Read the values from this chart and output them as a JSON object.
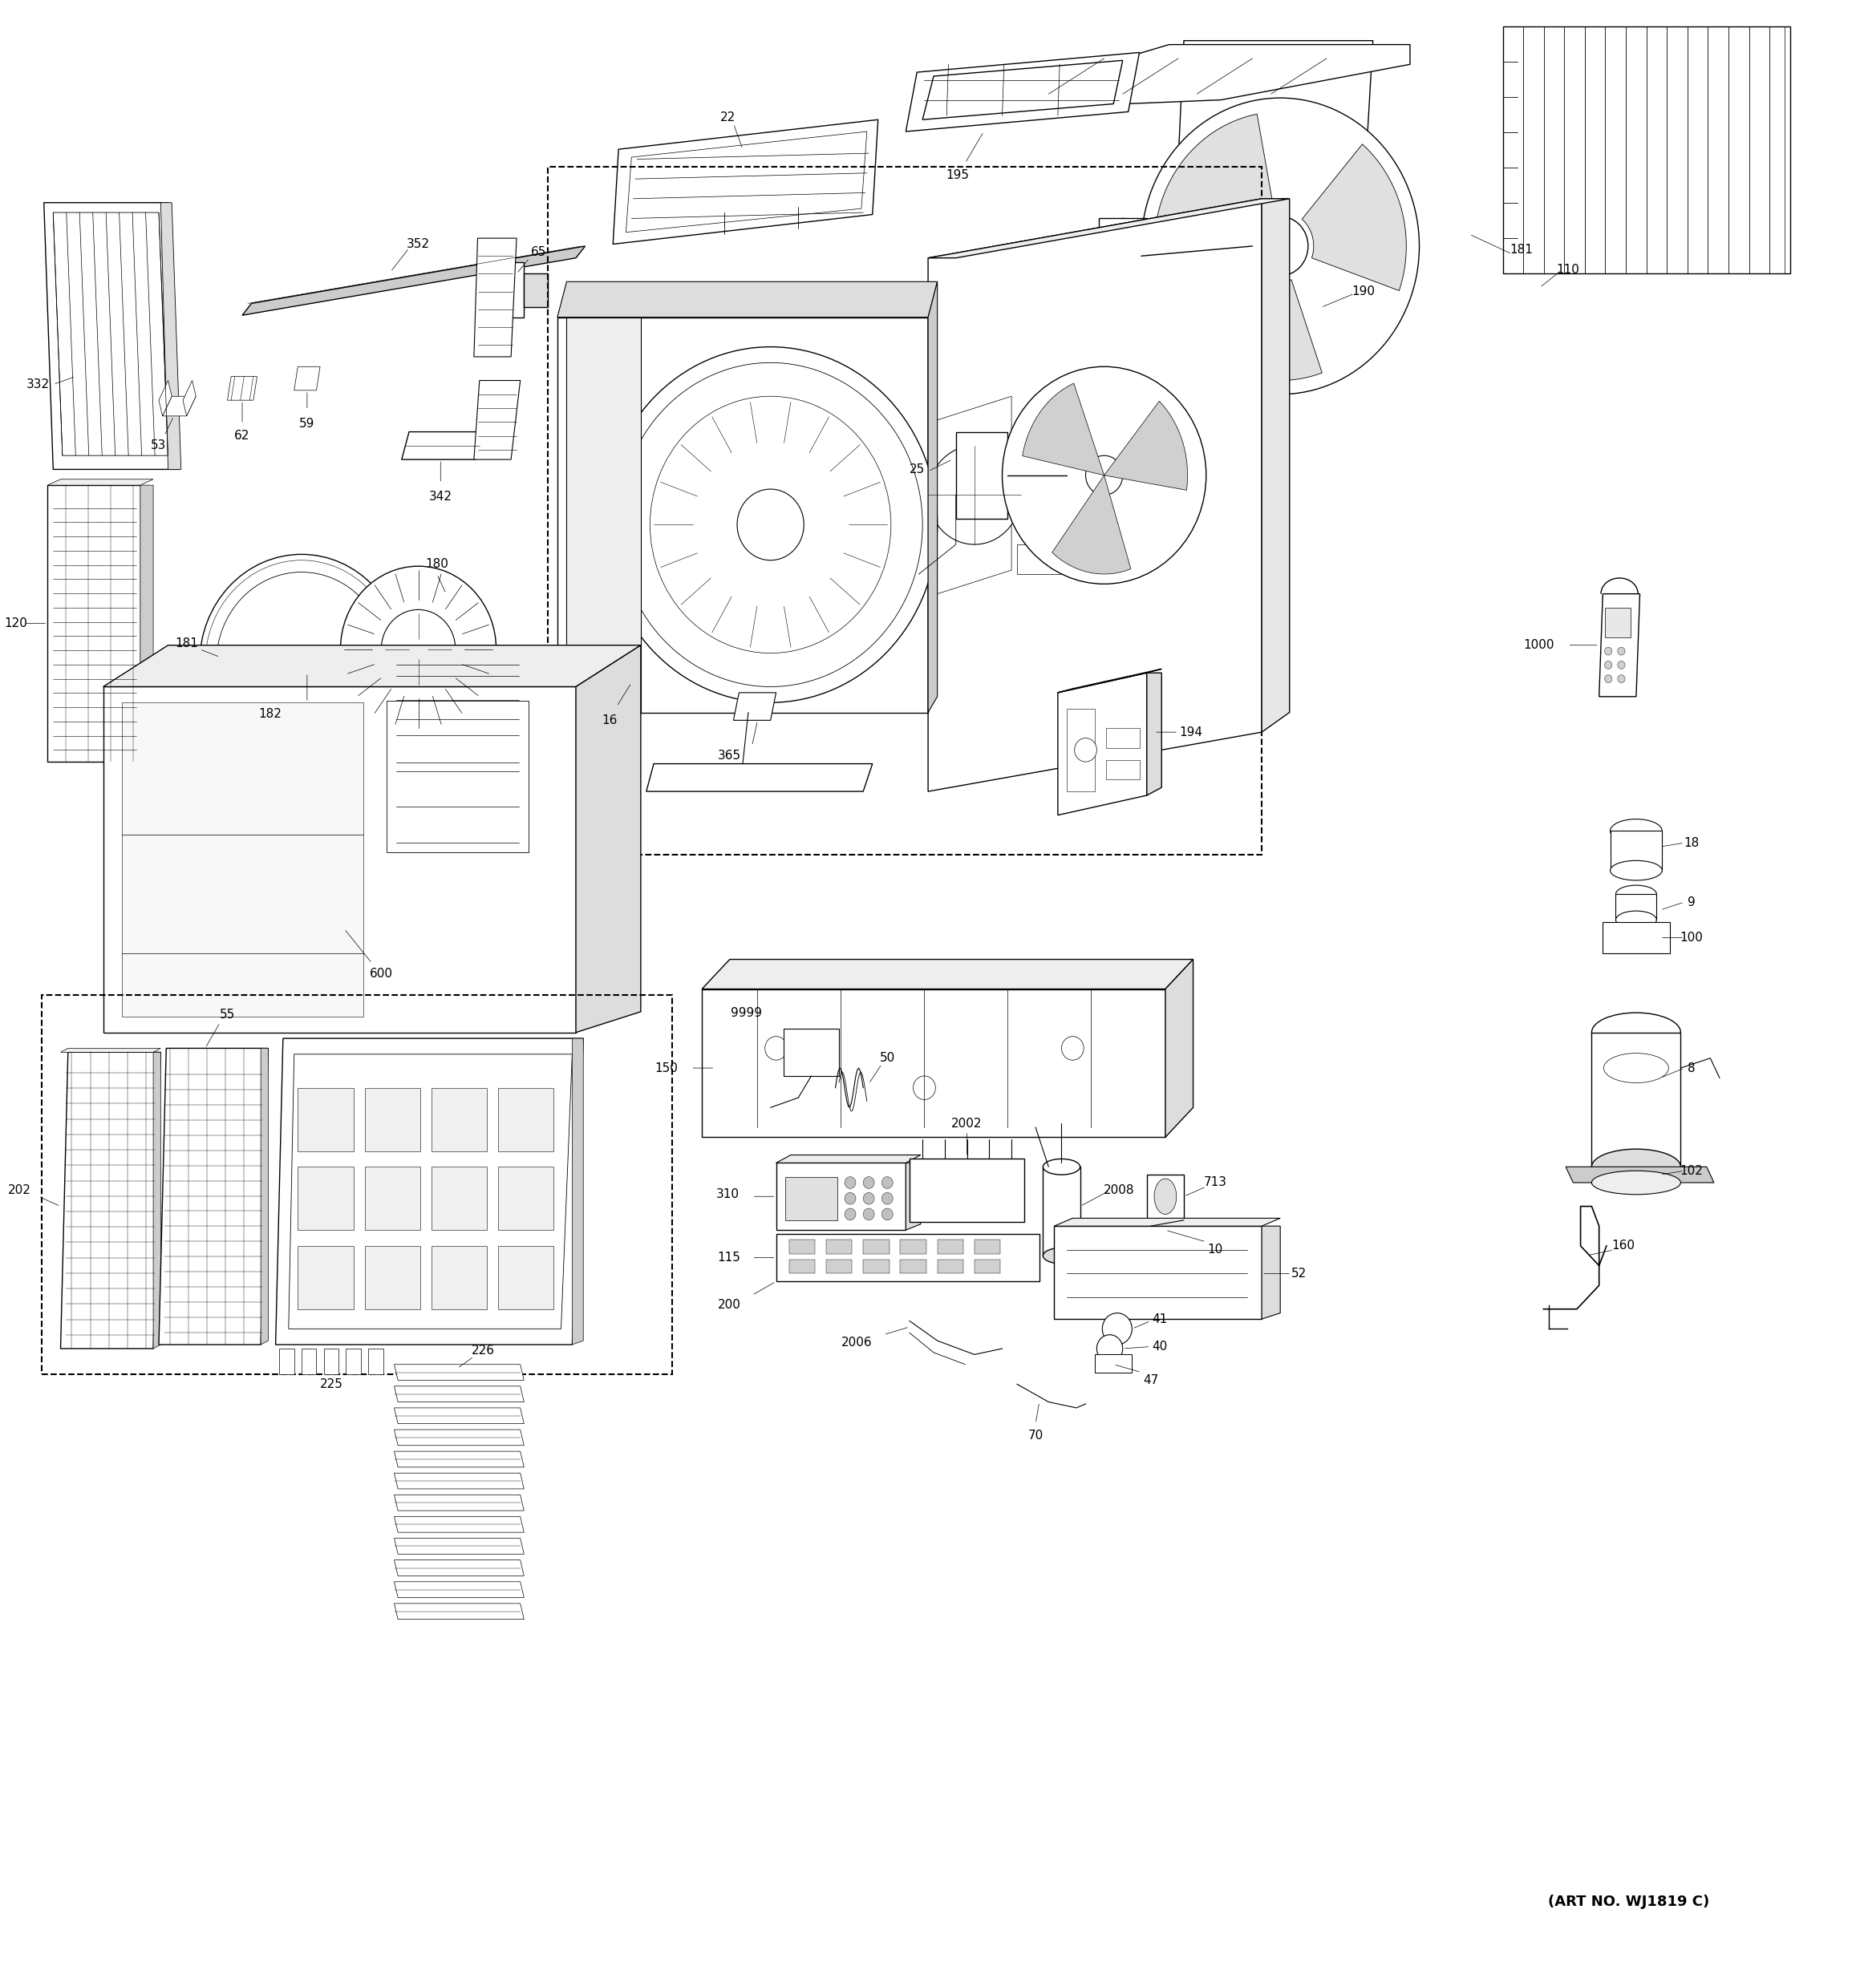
{
  "art_no": "(ART NO. WJ1819 C)",
  "background_color": "#ffffff",
  "fig_width": 23.14,
  "fig_height": 24.67
}
